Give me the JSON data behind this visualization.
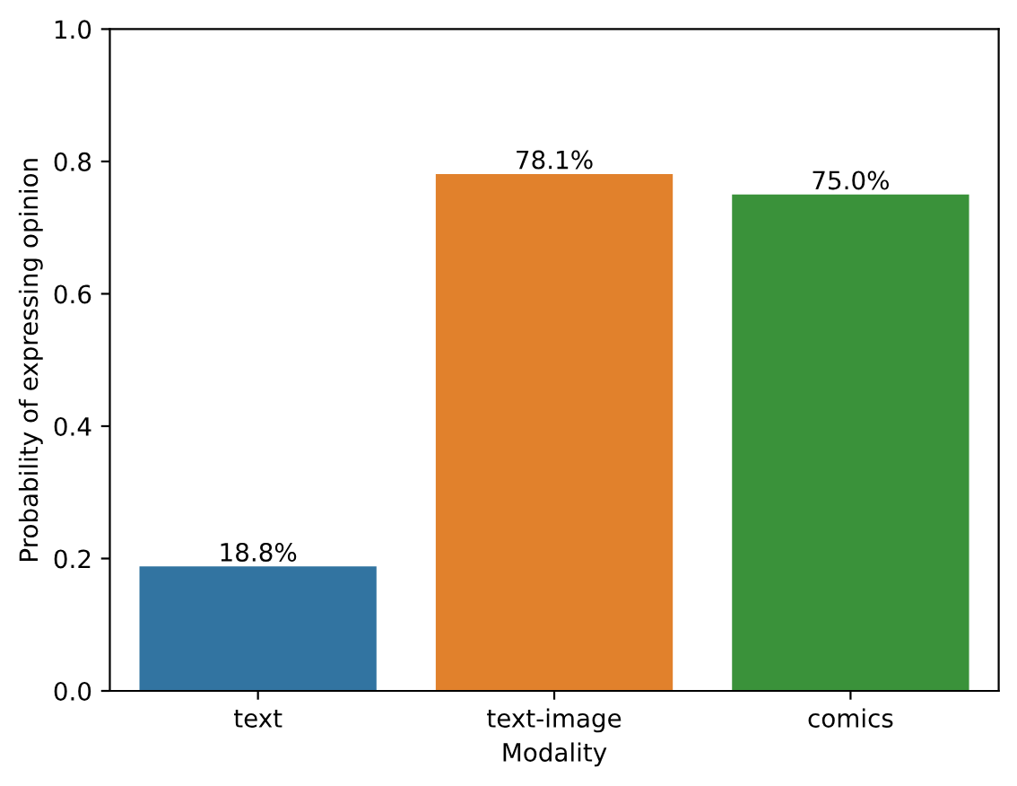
{
  "chart_data": {
    "type": "bar",
    "xlabel": "Modality",
    "ylabel": "Probability of expressing opinion",
    "categories": [
      "text",
      "text-image",
      "comics"
    ],
    "values": [
      0.188,
      0.781,
      0.75
    ],
    "colors": [
      "#3274a1",
      "#e1812c",
      "#3a923a"
    ],
    "value_labels": [
      "18.8%",
      "78.1%",
      "75.0%"
    ],
    "ylim": [
      0,
      1
    ],
    "yticks": [
      {
        "value": 0,
        "label": "0.0"
      },
      {
        "value": 0.2,
        "label": "0.2"
      },
      {
        "value": 0.4,
        "label": "0.4"
      },
      {
        "value": 0.6,
        "label": "0.6"
      },
      {
        "value": 0.8,
        "label": "0.8"
      },
      {
        "value": 1,
        "label": "1.0"
      }
    ],
    "grid": false
  }
}
